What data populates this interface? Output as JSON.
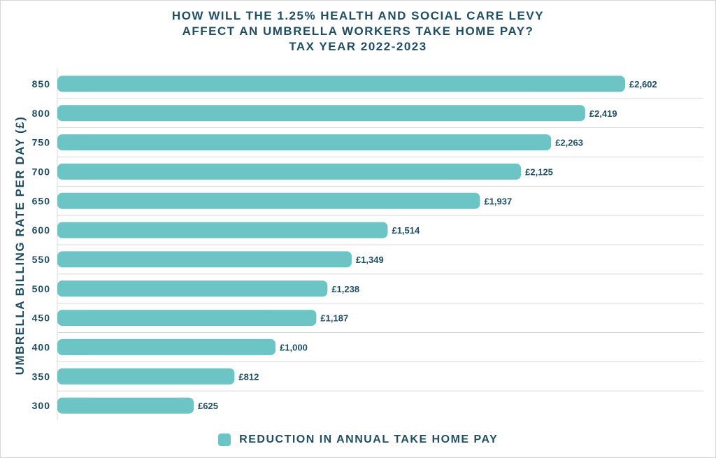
{
  "colors": {
    "bar": "#6dc4c4",
    "text": "#1f4e63",
    "grid": "#d9d9d9"
  },
  "chart_data": {
    "type": "bar",
    "orientation": "horizontal",
    "title": [
      "HOW WILL THE 1.25% HEALTH AND SOCIAL CARE LEVY",
      "AFFECT AN UMBRELLA WORKERS TAKE HOME PAY?",
      "TAX YEAR 2022-2023"
    ],
    "ylabel": "UMBRELLA BILLING RATE PER DAY (£)",
    "xlabel": "",
    "categories": [
      "850",
      "800",
      "750",
      "700",
      "650",
      "600",
      "550",
      "500",
      "450",
      "400",
      "350",
      "300"
    ],
    "series": [
      {
        "name": "REDUCTION IN ANNUAL TAKE HOME PAY",
        "values": [
          2602,
          2419,
          2263,
          2125,
          1937,
          1514,
          1349,
          1238,
          1187,
          1000,
          812,
          625
        ],
        "labels": [
          "£2,602",
          "£2,419",
          "£2,263",
          "£2,125",
          "£1,937",
          "£1,514",
          "£1,349",
          "£1,238",
          "£1,187",
          "£1,000",
          "£812",
          "£625"
        ]
      }
    ],
    "xlim": [
      0,
      2602
    ],
    "grid": true,
    "legend_position": "bottom"
  }
}
